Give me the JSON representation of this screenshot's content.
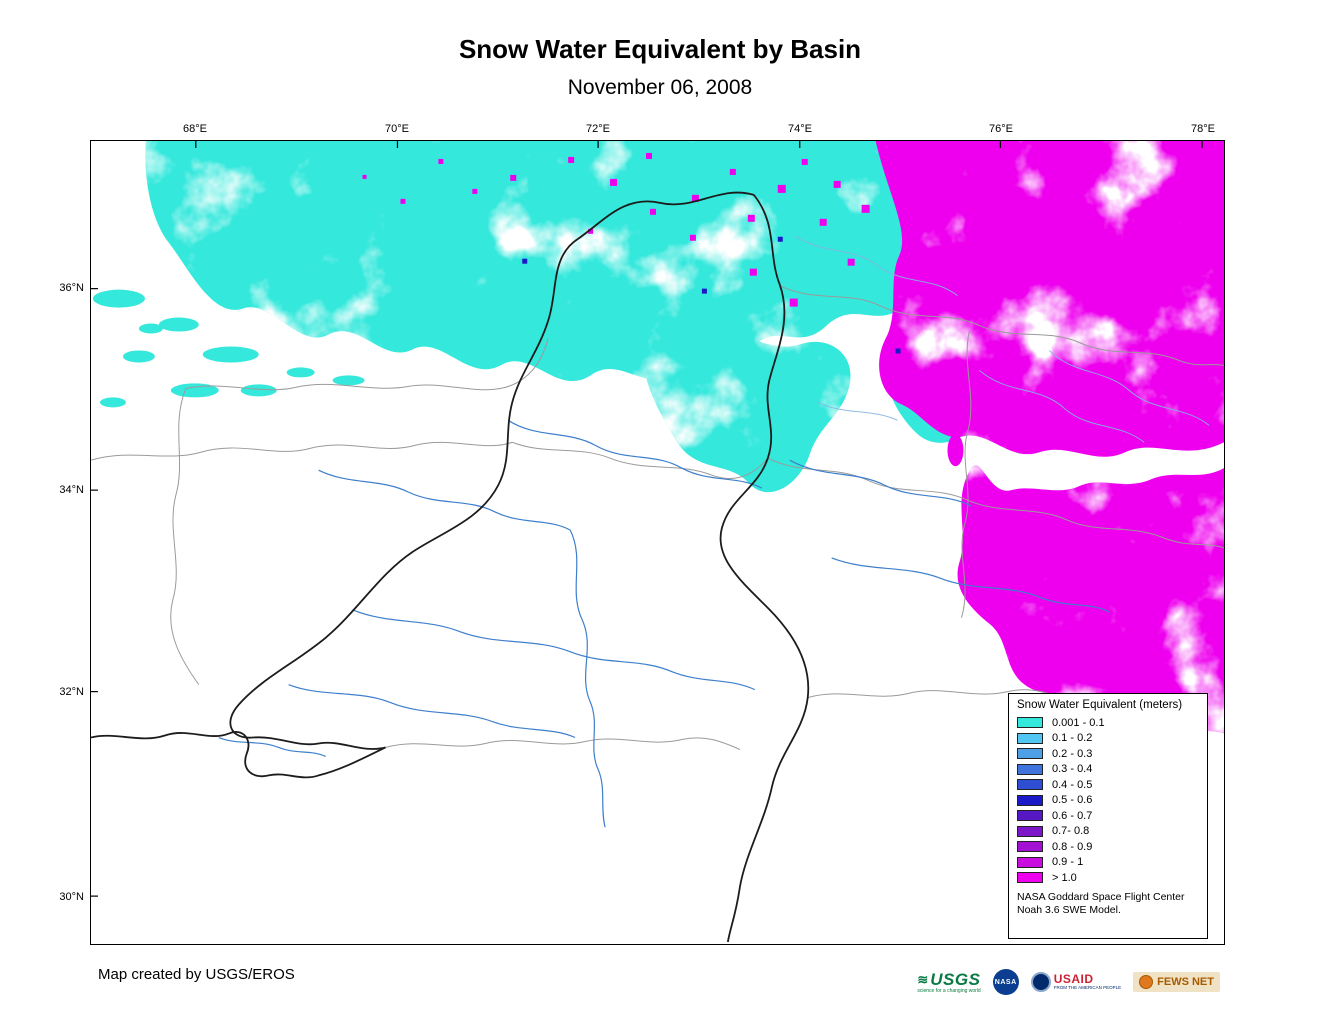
{
  "title": "Snow Water Equivalent by Basin",
  "subtitle": "November 06, 2008",
  "map": {
    "lon_ticks": [
      "68°E",
      "70°E",
      "72°E",
      "74°E",
      "76°E",
      "78°E"
    ],
    "lat_ticks": [
      "36°N",
      "34°N",
      "32°N",
      "30°N"
    ],
    "colors": {
      "snow_light": "#35E8DC",
      "snow_heavy": "#EE00EE",
      "snow_navy": "#1A1AC8",
      "river": "#3E7FCC",
      "river_light": "#85B4E2",
      "basin_dark": "#1C1C1C",
      "basin_gray": "#9A9A9A"
    }
  },
  "legend": {
    "title": "Snow Water Equivalent (meters)",
    "entries": [
      {
        "label": "0.001 - 0.1",
        "color": "#35E8DC"
      },
      {
        "label": "0.1 - 0.2",
        "color": "#52C6F2"
      },
      {
        "label": "0.2 - 0.3",
        "color": "#4D9FE6"
      },
      {
        "label": "0.3 - 0.4",
        "color": "#3F74DC"
      },
      {
        "label": "0.4 - 0.5",
        "color": "#2F4FD2"
      },
      {
        "label": "0.5 - 0.6",
        "color": "#1A1AC8"
      },
      {
        "label": "0.6 - 0.7",
        "color": "#5618C4"
      },
      {
        "label": "0.7- 0.8",
        "color": "#7D16C8"
      },
      {
        "label": "0.8 - 0.9",
        "color": "#A312D2"
      },
      {
        "label": "0.9 - 1",
        "color": "#C90DDE"
      },
      {
        "label": "> 1.0",
        "color": "#EE00EE"
      }
    ],
    "note_lines": [
      "NASA Goddard Space Flight Center",
      "Noah 3.6 SWE Model."
    ]
  },
  "footer": {
    "credit": "Map created by USGS/EROS",
    "logos": {
      "usgs": {
        "text": "USGS",
        "tagline": "science for a changing world"
      },
      "nasa": {
        "text": "NASA"
      },
      "usaid": {
        "text": "USAID",
        "tagline": "FROM THE AMERICAN PEOPLE"
      },
      "fewsnet": {
        "text": "FEWS NET"
      }
    }
  }
}
